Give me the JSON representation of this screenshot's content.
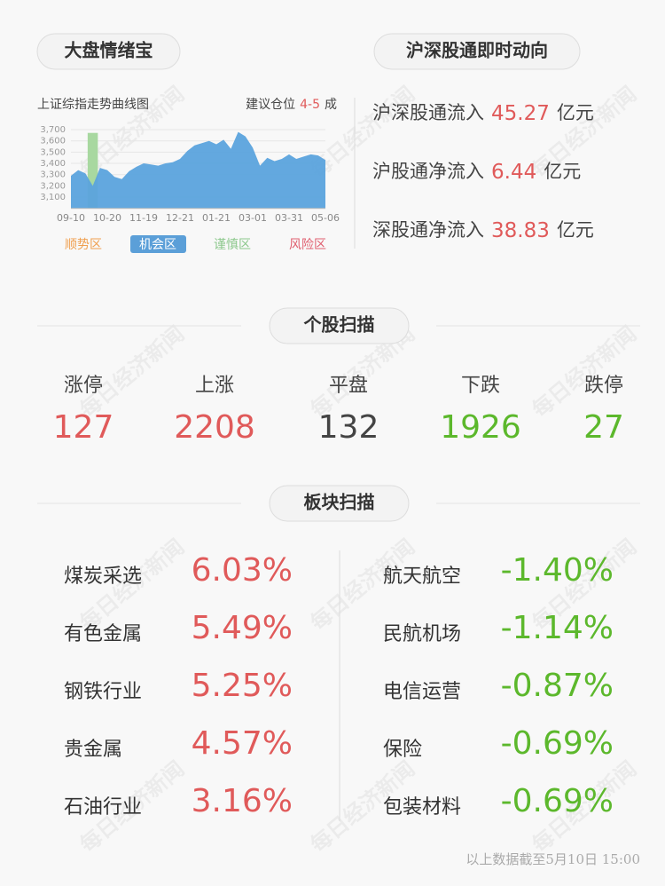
{
  "market": {
    "title": "大盘情绪宝",
    "chart_title": "上证综指走势曲线图",
    "advice_label": "建议仓位",
    "advice_value": "4-5",
    "advice_unit": "成",
    "zones": [
      "顺势区",
      "机会区",
      "谨慎区",
      "风险区"
    ]
  },
  "chart_data": {
    "type": "area",
    "color": "#5ba3dd",
    "categories": [
      "09-10",
      null,
      null,
      null,
      null,
      "10-20",
      null,
      null,
      null,
      null,
      "11-19",
      null,
      null,
      null,
      null,
      "12-21",
      null,
      null,
      null,
      null,
      "01-21",
      null,
      null,
      null,
      null,
      "03-01",
      null,
      null,
      null,
      null,
      "03-31",
      null,
      null,
      null,
      null,
      "05-06"
    ],
    "values": [
      3290,
      3340,
      3310,
      3200,
      3360,
      3340,
      3280,
      3260,
      3330,
      3370,
      3400,
      3390,
      3380,
      3400,
      3410,
      3440,
      3510,
      3560,
      3580,
      3600,
      3570,
      3610,
      3530,
      3680,
      3640,
      3540,
      3380,
      3450,
      3420,
      3440,
      3480,
      3440,
      3460,
      3480,
      3470,
      3430
    ],
    "ylim": [
      3000,
      3750
    ],
    "yticks": [
      {
        "value": 3100,
        "label": "3,100"
      },
      {
        "value": 3200,
        "label": "3,200"
      },
      {
        "value": 3300,
        "label": "3,300"
      },
      {
        "value": 3400,
        "label": "3,400"
      },
      {
        "value": 3500,
        "label": "3,500"
      },
      {
        "value": 3600,
        "label": "3,600"
      },
      {
        "value": 3700,
        "label": "3,700"
      }
    ]
  },
  "flows": {
    "title": "沪深股通即时动向",
    "items": [
      {
        "name": "沪深股通流入",
        "value": "45.27",
        "unit": "亿元"
      },
      {
        "name": "沪股通净流入",
        "value": "6.44",
        "unit": "亿元"
      },
      {
        "name": "深股通净流入",
        "value": "38.83",
        "unit": "亿元"
      }
    ]
  },
  "stocks": {
    "title": "个股扫描",
    "items": [
      {
        "name": "涨停",
        "value": "127"
      },
      {
        "name": "上涨",
        "value": "2208"
      },
      {
        "name": "平盘",
        "value": "132"
      },
      {
        "name": "下跌",
        "value": "1926"
      },
      {
        "name": "跌停",
        "value": "27"
      }
    ]
  },
  "sectors": {
    "title": "板块扫描",
    "gainers": [
      {
        "name": "煤炭采选",
        "value": "6.03%"
      },
      {
        "name": "有色金属",
        "value": "5.49%"
      },
      {
        "name": "钢铁行业",
        "value": "5.25%"
      },
      {
        "name": "贵金属",
        "value": "4.57%"
      },
      {
        "name": "石油行业",
        "value": "3.16%"
      }
    ],
    "losers": [
      {
        "name": "航天航空",
        "value": "-1.40%"
      },
      {
        "name": "民航机场",
        "value": "-1.14%"
      },
      {
        "name": "电信运营",
        "value": "-0.87%"
      },
      {
        "name": "保险",
        "value": "-0.69%"
      },
      {
        "name": "包装材料",
        "value": "-0.69%"
      }
    ]
  },
  "footer": "以上数据截至5月10日 15:00",
  "watermark": "每日经济新闻"
}
